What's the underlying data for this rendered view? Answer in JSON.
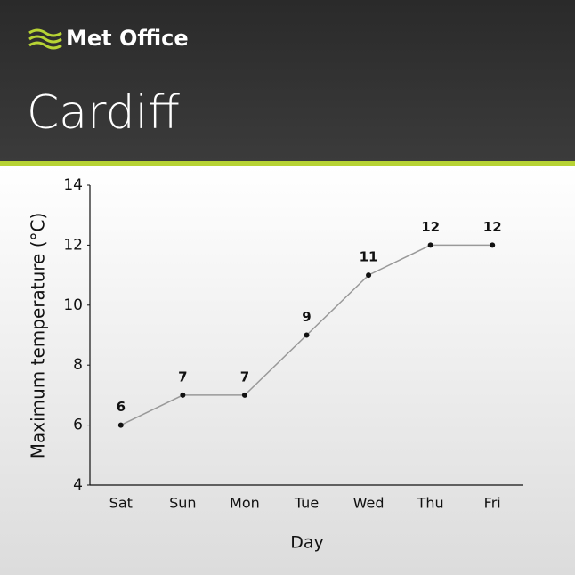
{
  "brand": "Met Office",
  "chart_data": {
    "type": "line",
    "title": "Cardiff",
    "categories": [
      "Sat",
      "Sun",
      "Mon",
      "Tue",
      "Wed",
      "Thu",
      "Fri"
    ],
    "values": [
      6,
      7,
      7,
      9,
      11,
      12,
      12
    ],
    "color": "#999999",
    "xlabel": "Day",
    "ylabel": "Maximum temperature (°C)",
    "ylim": [
      4,
      14
    ],
    "yticks": [
      4,
      6,
      8,
      10,
      12,
      14
    ],
    "grid": false
  }
}
